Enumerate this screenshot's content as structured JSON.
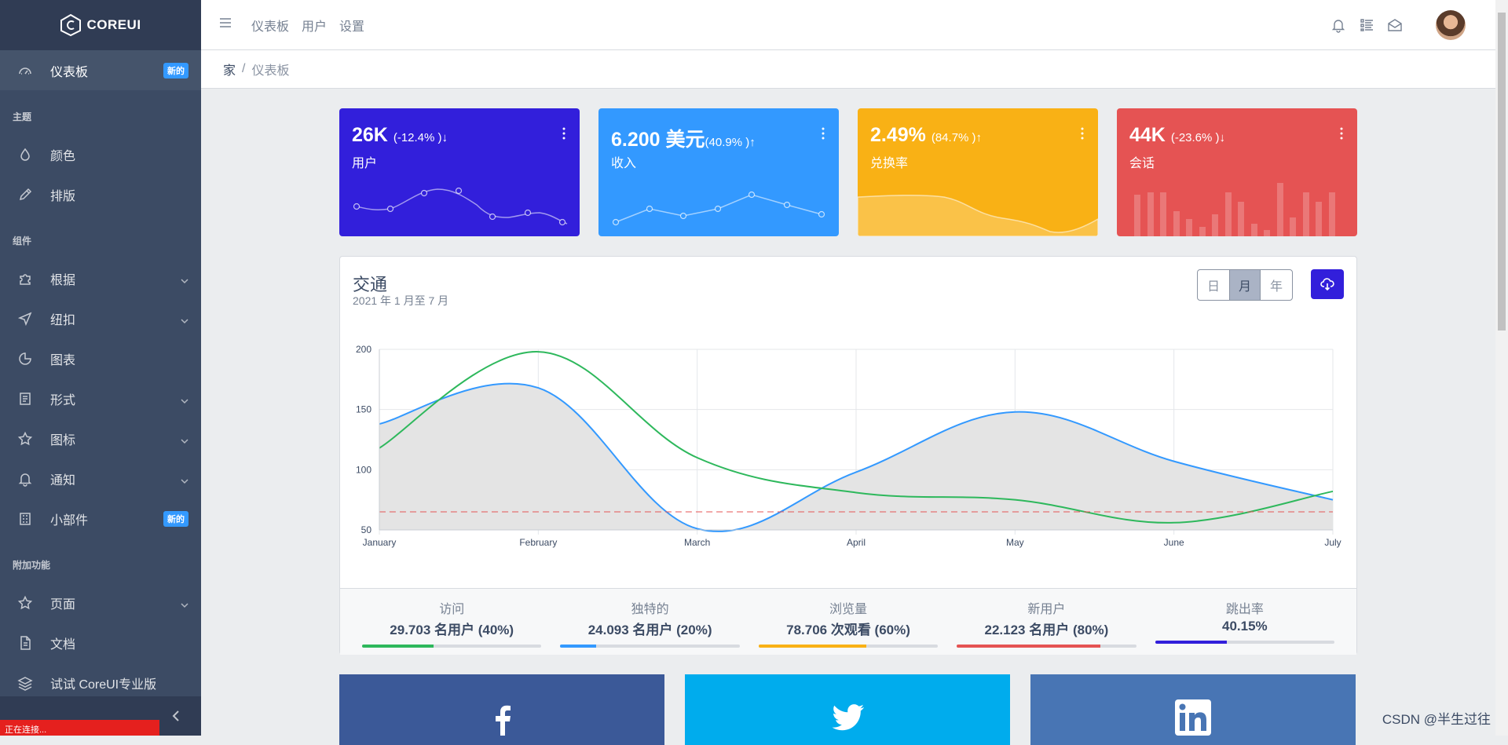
{
  "brand": {
    "name": "COREUI"
  },
  "sidebar": {
    "items": [
      {
        "label": "仪表板",
        "badge": "新的",
        "icon": "speedometer-icon"
      },
      {
        "section": "主题"
      },
      {
        "label": "颜色",
        "icon": "drop-icon"
      },
      {
        "label": "排版",
        "icon": "pencil-icon"
      },
      {
        "section": "组件"
      },
      {
        "label": "根据",
        "icon": "puzzle-icon",
        "chevron": true
      },
      {
        "label": "纽扣",
        "icon": "cursor-icon",
        "chevron": true
      },
      {
        "label": "图表",
        "icon": "chart-pie-icon"
      },
      {
        "label": "形式",
        "icon": "notes-icon",
        "chevron": true
      },
      {
        "label": "图标",
        "icon": "star-icon",
        "chevron": true
      },
      {
        "label": "通知",
        "icon": "bell-icon",
        "chevron": true
      },
      {
        "label": "小部件",
        "badge": "新的",
        "icon": "calculator-icon"
      },
      {
        "section": "附加功能"
      },
      {
        "label": "页面",
        "icon": "star-icon",
        "chevron": true
      },
      {
        "label": "文档",
        "icon": "description-icon"
      },
      {
        "label": "试试 CoreUI专业版",
        "icon": "layers-icon"
      }
    ],
    "status": "正在连接..."
  },
  "header": {
    "nav": [
      "仪表板",
      "用户",
      "设置"
    ]
  },
  "breadcrumb": {
    "home": "家",
    "separator": "/",
    "current": "仪表板"
  },
  "cards": [
    {
      "value": "26K",
      "change": "(-12.4% )↓",
      "label": "用户",
      "color": "#321fdb"
    },
    {
      "value": "6.200 美元",
      "change": "(40.9% )↑",
      "label": "收入",
      "color": "#3399ff"
    },
    {
      "value": "2.49%",
      "change": "(84.7% )↑",
      "label": "兑换率",
      "color": "#f9b115"
    },
    {
      "value": "44K",
      "change": "(-23.6% )↓",
      "label": "会话",
      "color": "#e55353"
    }
  ],
  "traffic": {
    "title": "交通",
    "subtitle": "2021 年 1 月至 7 月",
    "range_buttons": [
      "日",
      "月",
      "年"
    ],
    "selected_range": "月"
  },
  "chart_data": {
    "type": "line",
    "x": [
      "January",
      "February",
      "March",
      "April",
      "May",
      "June",
      "July"
    ],
    "ylim": [
      50,
      200
    ],
    "yticks": [
      50,
      100,
      150,
      200
    ],
    "grid": true,
    "series": [
      {
        "color": "#3399ff",
        "fill": "#e4e4e4",
        "values": [
          138,
          168,
          51,
          98,
          148,
          107,
          75
        ]
      },
      {
        "color": "#2eb85c",
        "values": [
          118,
          198,
          110,
          81,
          75,
          56,
          82
        ]
      },
      {
        "color": "#e55353",
        "dashed": true,
        "values": [
          65,
          65,
          65,
          65,
          65,
          65,
          65
        ]
      }
    ]
  },
  "stats": [
    {
      "label": "访问",
      "value": "29.703 名用户 (40%)",
      "percent": 40,
      "color": "#2eb85c"
    },
    {
      "label": "独特的",
      "value": "24.093 名用户 (20%)",
      "percent": 20,
      "color": "#3399ff"
    },
    {
      "label": "浏览量",
      "value": "78.706 次观看 (60%)",
      "percent": 60,
      "color": "#f9b115"
    },
    {
      "label": "新用户",
      "value": "22.123 名用户 (80%)",
      "percent": 80,
      "color": "#e55353"
    },
    {
      "label": "跳出率",
      "value": "40.15%",
      "percent": 40,
      "color": "#321fdb"
    }
  ],
  "social": [
    {
      "name": "facebook-icon",
      "color": "#3b5998"
    },
    {
      "name": "twitter-icon",
      "color": "#00aced"
    },
    {
      "name": "linkedin-icon",
      "color": "#4875b4"
    }
  ],
  "watermark": "CSDN @半生过往"
}
